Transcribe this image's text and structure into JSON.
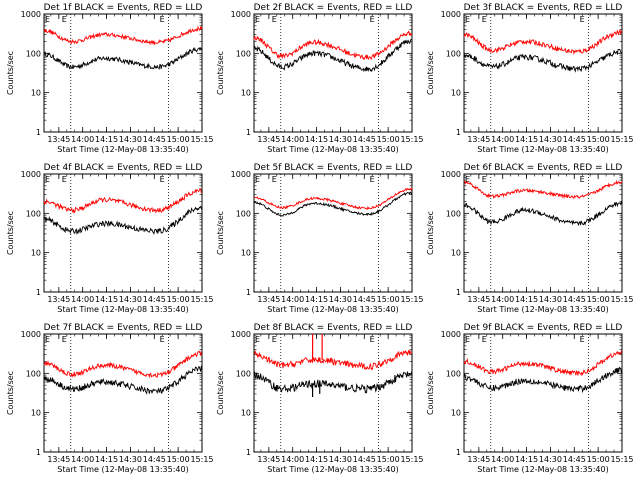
{
  "chart_data": [
    {
      "type": "line",
      "title": "Det 1f BLACK = Events, RED = LLD",
      "xlabel": "Start Time (12-May-08 13:35:40)",
      "ylabel": "Counts/sec",
      "yscale": "log",
      "ylim": [
        1,
        1000
      ],
      "x_ticks": [
        "13:45",
        "14:00",
        "14:15",
        "14:30",
        "14:45",
        "15:00",
        "15:15"
      ],
      "y_ticks": [
        "1",
        "10",
        "100",
        "1000"
      ],
      "xlim": [
        "13:35:40",
        "15:15:00"
      ],
      "markers": {
        "labels": [
          "E",
          "E"
        ],
        "x": [
          "13:52:30",
          "14:54:00"
        ]
      },
      "series": [
        {
          "color": "#000000",
          "shape": "wave",
          "values": {
            "start": 95,
            "trough1": 45,
            "peak": 75,
            "trough2": 45,
            "end": 130,
            "noise": 0.06
          }
        },
        {
          "color": "#ff0000",
          "shape": "wave",
          "values": {
            "start": 380,
            "trough1": 200,
            "peak": 300,
            "trough2": 190,
            "end": 430,
            "noise": 0.05
          }
        }
      ]
    },
    {
      "type": "line",
      "title": "Det 2f BLACK = Events, RED = LLD",
      "xlabel": "Start Time (12-May-08 13:35:40)",
      "ylabel": "Counts/sec",
      "yscale": "log",
      "ylim": [
        1,
        1000
      ],
      "x_ticks": [
        "13:45",
        "14:00",
        "14:15",
        "14:30",
        "14:45",
        "15:00",
        "15:15"
      ],
      "y_ticks": [
        "1",
        "10",
        "100",
        "1000"
      ],
      "xlim": [
        "13:35:40",
        "15:15:00"
      ],
      "markers": {
        "labels": [
          "E",
          "E"
        ],
        "x": [
          "13:52:30",
          "14:54:00"
        ]
      },
      "series": [
        {
          "color": "#000000",
          "shape": "wave",
          "values": {
            "start": 130,
            "trough1": 45,
            "peak": 100,
            "trough2": 40,
            "end": 210,
            "noise": 0.07
          }
        },
        {
          "color": "#ff0000",
          "shape": "wave",
          "values": {
            "start": 250,
            "trough1": 85,
            "peak": 190,
            "trough2": 80,
            "end": 330,
            "noise": 0.06
          }
        }
      ]
    },
    {
      "type": "line",
      "title": "Det 3f BLACK = Events, RED = LLD",
      "xlabel": "Start Time (12-May-08 13:35:40)",
      "ylabel": "Counts/sec",
      "yscale": "log",
      "ylim": [
        1,
        1000
      ],
      "x_ticks": [
        "13:45",
        "14:00",
        "14:15",
        "14:30",
        "14:45",
        "15:00",
        "15:15"
      ],
      "y_ticks": [
        "1",
        "10",
        "100",
        "1000"
      ],
      "xlim": [
        "13:35:40",
        "15:15:00"
      ],
      "markers": {
        "labels": [
          "E",
          "E"
        ],
        "x": [
          "13:52:30",
          "14:54:00"
        ]
      },
      "series": [
        {
          "color": "#000000",
          "shape": "wave",
          "values": {
            "start": 90,
            "trough1": 45,
            "peak": 80,
            "trough2": 40,
            "end": 110,
            "noise": 0.07
          }
        },
        {
          "color": "#ff0000",
          "shape": "wave",
          "values": {
            "start": 300,
            "trough1": 120,
            "peak": 200,
            "trough2": 110,
            "end": 350,
            "noise": 0.06
          }
        }
      ]
    },
    {
      "type": "line",
      "title": "Det 4f BLACK = Events, RED = LLD",
      "xlabel": "Start Time (12-May-08 13:35:40)",
      "ylabel": "Counts/sec",
      "yscale": "log",
      "ylim": [
        1,
        1000
      ],
      "x_ticks": [
        "13:45",
        "14:00",
        "14:15",
        "14:30",
        "14:45",
        "15:00",
        "15:15"
      ],
      "y_ticks": [
        "1",
        "10",
        "100",
        "1000"
      ],
      "xlim": [
        "13:35:40",
        "15:15:00"
      ],
      "markers": {
        "labels": [
          "E",
          "E"
        ],
        "x": [
          "13:52:30",
          "14:54:00"
        ]
      },
      "series": [
        {
          "color": "#000000",
          "shape": "wave",
          "values": {
            "start": 70,
            "trough1": 35,
            "peak": 55,
            "trough2": 35,
            "end": 140,
            "noise": 0.07
          }
        },
        {
          "color": "#ff0000",
          "shape": "wave",
          "values": {
            "start": 200,
            "trough1": 120,
            "peak": 220,
            "trough2": 120,
            "end": 380,
            "noise": 0.06
          }
        }
      ]
    },
    {
      "type": "line",
      "title": "Det 5f BLACK = Events, RED = LLD",
      "xlabel": "Start Time (12-May-08 13:35:40)",
      "ylabel": "Counts/sec",
      "yscale": "log",
      "ylim": [
        1,
        1000
      ],
      "x_ticks": [
        "13:45",
        "14:00",
        "14:15",
        "14:30",
        "14:45",
        "15:00",
        "15:15"
      ],
      "y_ticks": [
        "1",
        "10",
        "100",
        "1000"
      ],
      "xlim": [
        "13:35:40",
        "15:15:00"
      ],
      "markers": {
        "labels": [
          "E",
          "E"
        ],
        "x": [
          "13:52:30",
          "14:54:00"
        ]
      },
      "series": [
        {
          "color": "#000000",
          "shape": "wave",
          "values": {
            "start": 190,
            "trough1": 90,
            "peak": 180,
            "trough2": 95,
            "end": 330,
            "noise": 0.03
          }
        },
        {
          "color": "#ff0000",
          "shape": "wave",
          "values": {
            "start": 250,
            "trough1": 140,
            "peak": 240,
            "trough2": 135,
            "end": 420,
            "noise": 0.03
          }
        }
      ]
    },
    {
      "type": "line",
      "title": "Det 6f BLACK = Events, RED = LLD",
      "xlabel": "Start Time (12-May-08 13:35:40)",
      "ylabel": "Counts/sec",
      "yscale": "log",
      "ylim": [
        1,
        1000
      ],
      "x_ticks": [
        "13:45",
        "14:00",
        "14:15",
        "14:30",
        "14:45",
        "15:00",
        "15:15"
      ],
      "y_ticks": [
        "1",
        "10",
        "100",
        "1000"
      ],
      "xlim": [
        "13:35:40",
        "15:15:00"
      ],
      "markers": {
        "labels": [
          "E",
          "E"
        ],
        "x": [
          "13:52:30",
          "14:54:00"
        ]
      },
      "series": [
        {
          "color": "#000000",
          "shape": "wave",
          "values": {
            "start": 160,
            "trough1": 60,
            "peak": 120,
            "trough2": 55,
            "end": 180,
            "noise": 0.06
          }
        },
        {
          "color": "#ff0000",
          "shape": "wave",
          "values": {
            "start": 620,
            "trough1": 270,
            "peak": 380,
            "trough2": 260,
            "end": 620,
            "noise": 0.04
          }
        }
      ]
    },
    {
      "type": "line",
      "title": "Det 7f BLACK = Events, RED = LLD",
      "xlabel": "Start Time (12-May-08 13:35:40)",
      "ylabel": "Counts/sec",
      "yscale": "log",
      "ylim": [
        1,
        1000
      ],
      "x_ticks": [
        "13:45",
        "14:00",
        "14:15",
        "14:30",
        "14:45",
        "15:00",
        "15:15"
      ],
      "y_ticks": [
        "1",
        "10",
        "100",
        "1000"
      ],
      "xlim": [
        "13:35:40",
        "15:15:00"
      ],
      "markers": {
        "labels": [
          "E",
          "E"
        ],
        "x": [
          "13:52:30",
          "14:54:00"
        ]
      },
      "series": [
        {
          "color": "#000000",
          "shape": "wave",
          "values": {
            "start": 75,
            "trough1": 40,
            "peak": 60,
            "trough2": 35,
            "end": 130,
            "noise": 0.08
          }
        },
        {
          "color": "#ff0000",
          "shape": "wave",
          "values": {
            "start": 180,
            "trough1": 95,
            "peak": 160,
            "trough2": 90,
            "end": 320,
            "noise": 0.06
          }
        }
      ]
    },
    {
      "type": "line",
      "title": "Det 8f BLACK = Events, RED = LLD",
      "xlabel": "Start Time (12-May-08 13:35:40)",
      "ylabel": "Counts/sec",
      "yscale": "log",
      "ylim": [
        1,
        1000
      ],
      "x_ticks": [
        "13:45",
        "14:00",
        "14:15",
        "14:30",
        "14:45",
        "15:00",
        "15:15"
      ],
      "y_ticks": [
        "1",
        "10",
        "100",
        "1000"
      ],
      "xlim": [
        "13:35:40",
        "15:15:00"
      ],
      "markers": {
        "labels": [
          "E",
          "E"
        ],
        "x": [
          "13:52:30",
          "14:54:00"
        ]
      },
      "series": [
        {
          "color": "#000000",
          "shape": "wave",
          "values": {
            "start": 90,
            "trough1": 40,
            "peak": 55,
            "trough2": 40,
            "end": 95,
            "noise": 0.1
          },
          "spikes": [
            {
              "x": "14:12:30",
              "value": 25
            },
            {
              "x": "14:17:00",
              "value": 30
            }
          ]
        },
        {
          "color": "#ff0000",
          "shape": "wave",
          "values": {
            "start": 300,
            "trough1": 160,
            "peak": 220,
            "trough2": 150,
            "end": 350,
            "noise": 0.08
          },
          "spikes": [
            {
              "x": "14:12:30",
              "value": 1000
            },
            {
              "x": "14:18:30",
              "value": 1000
            }
          ]
        }
      ]
    },
    {
      "type": "line",
      "title": "Det 9f BLACK = Events, RED = LLD",
      "xlabel": "Start Time (12-May-08 13:35:40)",
      "ylabel": "Counts/sec",
      "yscale": "log",
      "ylim": [
        1,
        1000
      ],
      "x_ticks": [
        "13:45",
        "14:00",
        "14:15",
        "14:30",
        "14:45",
        "15:00",
        "15:15"
      ],
      "y_ticks": [
        "1",
        "10",
        "100",
        "1000"
      ],
      "xlim": [
        "13:35:40",
        "15:15:00"
      ],
      "markers": {
        "labels": [
          "E",
          "E"
        ],
        "x": [
          "13:52:30",
          "14:54:00"
        ]
      },
      "series": [
        {
          "color": "#000000",
          "shape": "wave",
          "values": {
            "start": 80,
            "trough1": 42,
            "peak": 65,
            "trough2": 40,
            "end": 120,
            "noise": 0.08
          }
        },
        {
          "color": "#ff0000",
          "shape": "wave",
          "values": {
            "start": 200,
            "trough1": 110,
            "peak": 180,
            "trough2": 100,
            "end": 330,
            "noise": 0.06
          }
        }
      ]
    }
  ]
}
